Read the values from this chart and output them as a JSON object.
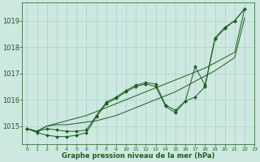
{
  "title": "Graphe pression niveau de la mer (hPa)",
  "background_color": "#cde8e0",
  "grid_color": "#aacfc8",
  "line_color": "#1a5e20",
  "xlim": [
    -0.5,
    23
  ],
  "ylim": [
    1014.3,
    1019.7
  ],
  "yticks": [
    1015,
    1016,
    1017,
    1018,
    1019
  ],
  "xticks": [
    0,
    1,
    2,
    3,
    4,
    5,
    6,
    7,
    8,
    9,
    10,
    11,
    12,
    13,
    14,
    15,
    16,
    17,
    18,
    19,
    20,
    21,
    22,
    23
  ],
  "figsize": [
    3.2,
    2.0
  ],
  "dpi": 100,
  "series_no_marker": [
    [
      0,
      1014.9,
      1,
      1014.8,
      2,
      1015.0,
      3,
      1015.1,
      4,
      1015.2,
      5,
      1015.3,
      6,
      1015.4,
      7,
      1015.55,
      8,
      1015.7,
      9,
      1015.85,
      10,
      1016.0,
      11,
      1016.15,
      12,
      1016.3,
      13,
      1016.45,
      14,
      1016.6,
      15,
      1016.75,
      16,
      1016.9,
      17,
      1017.05,
      18,
      1017.2,
      19,
      1017.4,
      20,
      1017.6,
      21,
      1017.8,
      22,
      1019.45
    ],
    [
      0,
      1014.9,
      1,
      1014.8,
      2,
      1015.0,
      3,
      1015.05,
      4,
      1015.05,
      5,
      1015.1,
      6,
      1015.15,
      7,
      1015.2,
      8,
      1015.3,
      9,
      1015.4,
      10,
      1015.55,
      11,
      1015.7,
      12,
      1015.85,
      13,
      1016.0,
      14,
      1016.15,
      15,
      1016.3,
      16,
      1016.5,
      17,
      1016.7,
      18,
      1016.9,
      19,
      1017.1,
      20,
      1017.35,
      21,
      1017.6,
      22,
      1019.1
    ]
  ],
  "series_with_marker": [
    [
      0,
      1014.9,
      1,
      1014.8,
      2,
      1014.9,
      3,
      1014.85,
      4,
      1014.8,
      5,
      1014.8,
      6,
      1014.85,
      7,
      1015.4,
      8,
      1015.9,
      9,
      1016.1,
      10,
      1016.35,
      11,
      1016.55,
      12,
      1016.65,
      13,
      1016.6,
      14,
      1015.8,
      15,
      1015.6,
      16,
      1015.95,
      17,
      1017.25,
      18,
      1016.55,
      19,
      1018.35,
      20,
      1018.75,
      21,
      1019.0,
      22,
      1019.45
    ],
    [
      0,
      1014.9,
      1,
      1014.75,
      2,
      1014.65,
      3,
      1014.6,
      4,
      1014.6,
      5,
      1014.65,
      6,
      1014.75,
      7,
      1015.35,
      8,
      1015.85,
      9,
      1016.05,
      10,
      1016.3,
      11,
      1016.5,
      12,
      1016.6,
      13,
      1016.5,
      14,
      1015.75,
      15,
      1015.5,
      16,
      1015.95,
      17,
      1016.1,
      18,
      1016.5,
      19,
      1018.3,
      20,
      1018.7,
      21,
      1019.0,
      22,
      1019.45
    ]
  ]
}
